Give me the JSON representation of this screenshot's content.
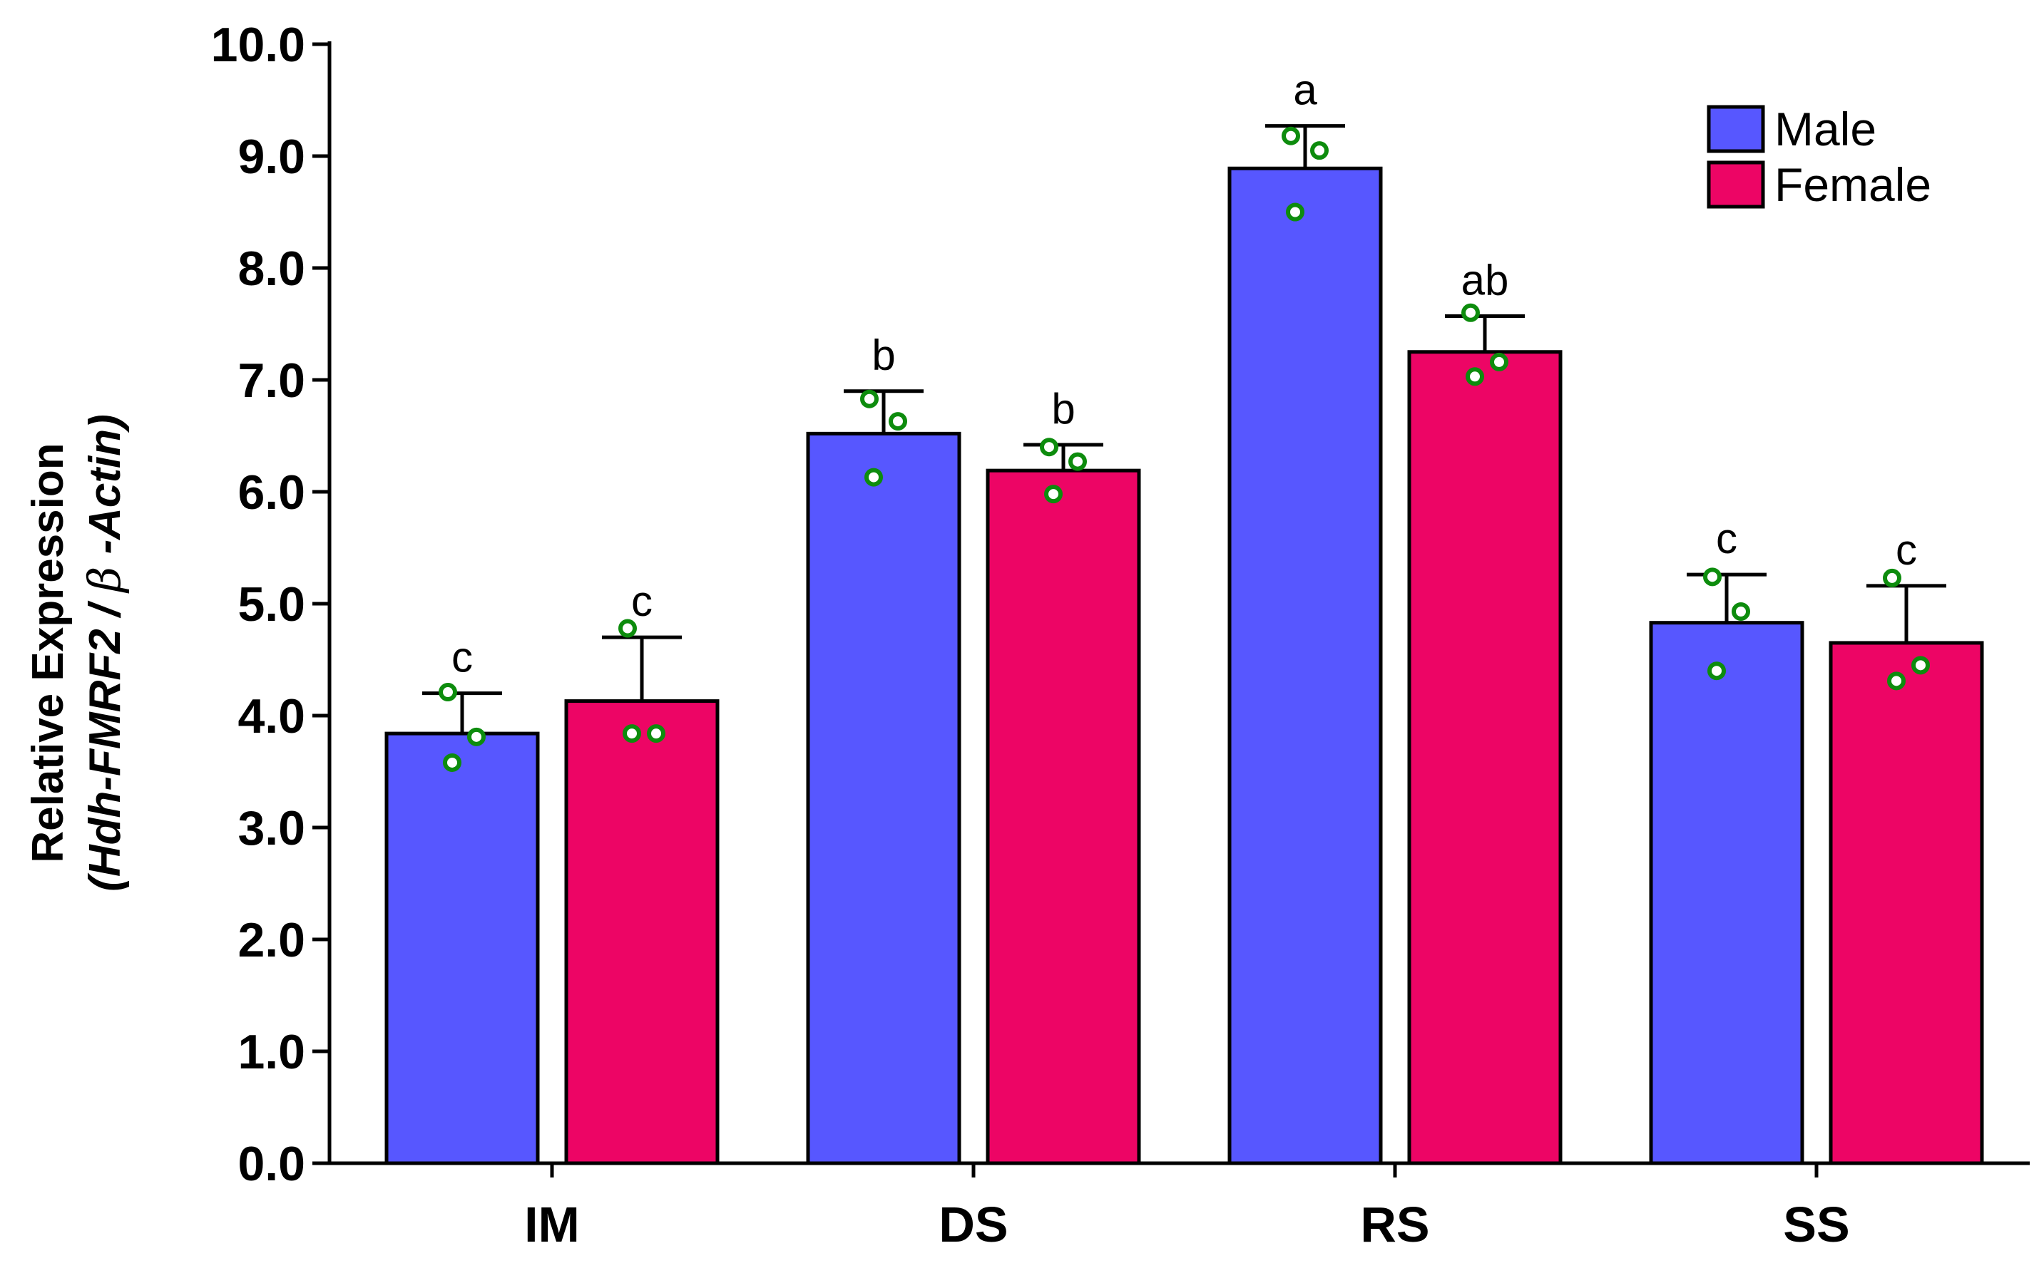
{
  "chart_data": {
    "type": "bar",
    "title": "",
    "xlabel": "",
    "ylabel": "Relative Expression",
    "ylabel_line2_prefix": "(Hdh-FMRF2 / ",
    "ylabel_line2_beta": "β",
    "ylabel_line2_suffix": " -Actin)",
    "ylim": [
      0,
      10
    ],
    "yticks": [
      "0.0",
      "1.0",
      "2.0",
      "3.0",
      "4.0",
      "5.0",
      "6.0",
      "7.0",
      "8.0",
      "9.0",
      "10.0"
    ],
    "grid": false,
    "legend_position": "top-right",
    "categories": [
      "IM",
      "DS",
      "RS",
      "SS"
    ],
    "series": [
      {
        "name": "Male",
        "color": "#5757ff",
        "values": [
          3.84,
          6.52,
          8.89,
          4.83
        ],
        "errors": [
          0.36,
          0.38,
          0.38,
          0.43
        ],
        "points": [
          [
            4.21,
            3.81,
            3.58
          ],
          [
            6.83,
            6.63,
            6.13
          ],
          [
            9.18,
            9.05,
            8.5
          ],
          [
            5.24,
            4.93,
            4.4
          ]
        ],
        "labels": [
          "c",
          "b",
          "a",
          "c"
        ]
      },
      {
        "name": "Female",
        "color": "#ed0565",
        "values": [
          4.13,
          6.19,
          7.25,
          4.65
        ],
        "errors": [
          0.57,
          0.23,
          0.32,
          0.51
        ],
        "points": [
          [
            4.78,
            3.84,
            3.84
          ],
          [
            6.4,
            6.27,
            5.98
          ],
          [
            7.6,
            7.16,
            7.03
          ],
          [
            5.23,
            4.45,
            4.31
          ]
        ],
        "labels": [
          "c",
          "b",
          "ab",
          "c"
        ]
      }
    ],
    "point_color": "#0d8c0d"
  }
}
